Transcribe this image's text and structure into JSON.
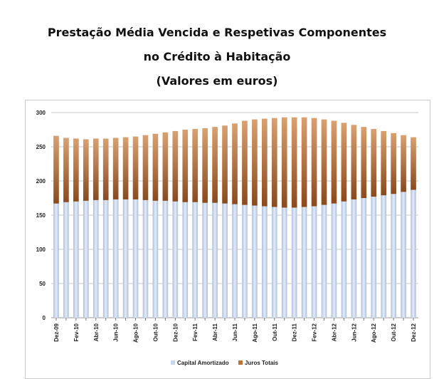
{
  "chart_data": {
    "type": "bar",
    "stacked": true,
    "title": [
      "Prestação Média Vencida e Respetivas Componentes",
      "no Crédito à Habitação",
      "(Valores em euros)"
    ],
    "xlabel": "",
    "ylabel": "",
    "ylim": [
      0,
      300
    ],
    "yticks": [
      0,
      50,
      100,
      150,
      200,
      250,
      300
    ],
    "grid": true,
    "legend_position": "bottom",
    "categories": [
      "Dez-09",
      "Jan-10",
      "Fev-10",
      "Mar-10",
      "Abr-10",
      "Mai-10",
      "Jun-10",
      "Jul-10",
      "Ago-10",
      "Set-10",
      "Out-10",
      "Nov-10",
      "Dez-10",
      "Jan-11",
      "Fev-11",
      "Mar-11",
      "Abr-11",
      "Mai-11",
      "Jun-11",
      "Jul-11",
      "Ago-11",
      "Set-11",
      "Out-11",
      "Nov-11",
      "Dez-11",
      "Jan-12",
      "Fev-12",
      "Mar-12",
      "Abr-12",
      "Mai-12",
      "Jun-12",
      "Jul-12",
      "Ago-12",
      "Set-12",
      "Out-12",
      "Nov-12",
      "Dez-12"
    ],
    "tick_labels": [
      "Dez-09",
      "Fev-10",
      "Abr-10",
      "Jun-10",
      "Ago-10",
      "Out-10",
      "Dez-10",
      "Fev-11",
      "Abr-11",
      "Jun-11",
      "Ago-11",
      "Out-11",
      "Dez-11",
      "Fev-12",
      "Abr-12",
      "Jun-12",
      "Ago-12",
      "Out-12",
      "Dez-12"
    ],
    "series": [
      {
        "name": "Capital Amortizado",
        "color": "#c9d7ee",
        "values": [
          167,
          169,
          170,
          171,
          172,
          172,
          173,
          173,
          173,
          172,
          171,
          171,
          170,
          169,
          169,
          168,
          168,
          167,
          166,
          165,
          164,
          163,
          162,
          161,
          161,
          162,
          163,
          165,
          167,
          170,
          173,
          175,
          177,
          179,
          181,
          184,
          187
        ]
      },
      {
        "name": "Juros Totais",
        "color": "#b8733a",
        "values": [
          99,
          94,
          92,
          90,
          90,
          90,
          90,
          91,
          92,
          95,
          98,
          100,
          103,
          106,
          107,
          109,
          111,
          114,
          118,
          123,
          126,
          128,
          130,
          132,
          132,
          131,
          129,
          125,
          121,
          115,
          109,
          104,
          99,
          94,
          89,
          83,
          77
        ]
      }
    ]
  }
}
